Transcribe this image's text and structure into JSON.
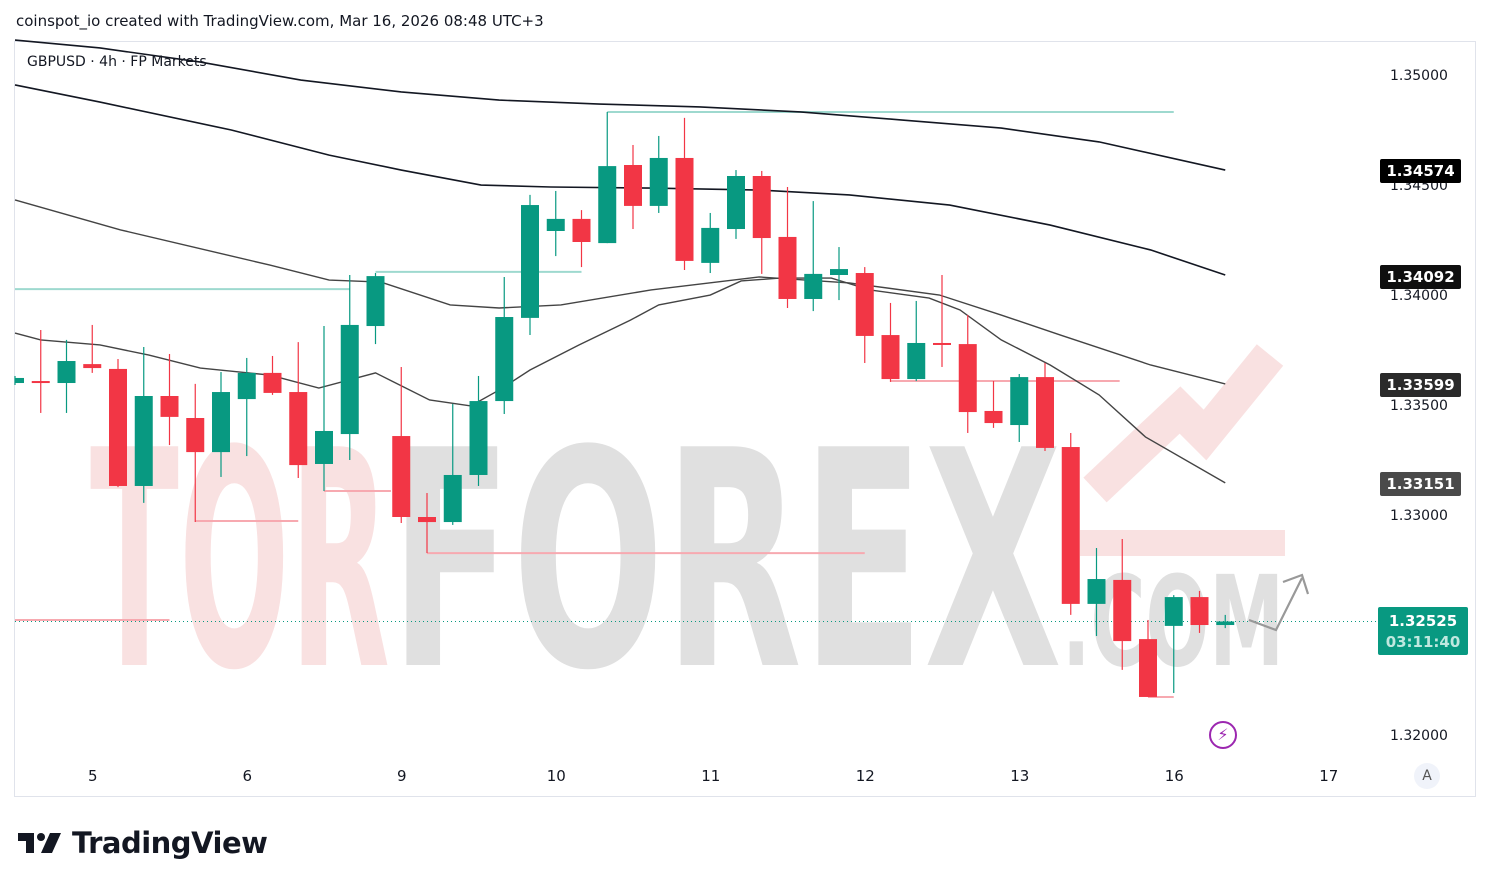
{
  "caption": "coinspot_io created with TradingView.com, Mar 16, 2026 08:48 UTC+3",
  "legend": "GBPUSD · 4h · FP Markets",
  "watermark": {
    "left": "TOR",
    "middle": "FOREX",
    "suffix": ".COM"
  },
  "footer_logo": "TradingView",
  "auto_button": "A",
  "colors": {
    "up": "#089981",
    "down": "#F23645",
    "level_up": "#9ed9cf",
    "level_down": "#f7a9b0",
    "ma_dark": "#131722",
    "ma_gray": "#444444",
    "alert": "#9c27b0"
  },
  "icons": {
    "alert": "lightning-icon",
    "projection": "arrow-up-right-icon"
  },
  "chart_data": {
    "type": "candlestick",
    "symbol": "GBPUSD",
    "interval": "4h",
    "ylim": [
      1.3185,
      1.3515
    ],
    "price_ticks": [
      "1.35000",
      "1.34500",
      "1.34000",
      "1.33500",
      "1.33000",
      "1.32000"
    ],
    "time_ticks": [
      {
        "label": "5",
        "bar": 3
      },
      {
        "label": "6",
        "bar": 9
      },
      {
        "label": "9",
        "bar": 15
      },
      {
        "label": "10",
        "bar": 21
      },
      {
        "label": "11",
        "bar": 27
      },
      {
        "label": "12",
        "bar": 33
      },
      {
        "label": "13",
        "bar": 39
      },
      {
        "label": "16",
        "bar": 45
      },
      {
        "label": "17",
        "bar": 51
      }
    ],
    "candles": [
      [
        1.33609,
        1.33641,
        1.336,
        1.33632
      ],
      [
        1.33618,
        1.3385,
        1.33473,
        1.33609
      ],
      [
        1.33609,
        1.33805,
        1.33473,
        1.33709
      ],
      [
        1.33695,
        1.33873,
        1.33655,
        1.33677
      ],
      [
        1.33673,
        1.33718,
        1.33136,
        1.33141
      ],
      [
        1.33141,
        1.33773,
        1.33064,
        1.3355
      ],
      [
        1.3355,
        1.33741,
        1.33327,
        1.33455
      ],
      [
        1.3345,
        1.33605,
        1.32977,
        1.33295
      ],
      [
        1.33295,
        1.33659,
        1.33182,
        1.33568
      ],
      [
        1.33536,
        1.33723,
        1.33277,
        1.33655
      ],
      [
        1.33655,
        1.33732,
        1.33555,
        1.33564
      ],
      [
        1.33568,
        1.33795,
        1.33177,
        1.33236
      ],
      [
        1.33241,
        1.33868,
        1.33118,
        1.33391
      ],
      [
        1.33377,
        1.341,
        1.33259,
        1.33873
      ],
      [
        1.33868,
        1.34109,
        1.33786,
        1.34095
      ],
      [
        1.33368,
        1.33682,
        1.32973,
        1.33
      ],
      [
        1.33,
        1.33109,
        1.32836,
        1.32977
      ],
      [
        1.32977,
        1.33514,
        1.32964,
        1.33191
      ],
      [
        1.33191,
        1.33641,
        1.33141,
        1.33527
      ],
      [
        1.33527,
        1.34091,
        1.33468,
        1.33909
      ],
      [
        1.33905,
        1.34464,
        1.33827,
        1.34418
      ],
      [
        1.343,
        1.34482,
        1.34186,
        1.34355
      ],
      [
        1.34355,
        1.34395,
        1.34136,
        1.3425
      ],
      [
        1.34245,
        1.34841,
        1.34245,
        1.34595
      ],
      [
        1.346,
        1.34691,
        1.34309,
        1.34414
      ],
      [
        1.34414,
        1.34732,
        1.34382,
        1.34632
      ],
      [
        1.34632,
        1.34814,
        1.34123,
        1.34164
      ],
      [
        1.34155,
        1.34382,
        1.34109,
        1.34314
      ],
      [
        1.34309,
        1.34577,
        1.34264,
        1.3455
      ],
      [
        1.3455,
        1.34573,
        1.34105,
        1.34268
      ],
      [
        1.34273,
        1.345,
        1.3395,
        1.33991
      ],
      [
        1.33991,
        1.34436,
        1.33936,
        1.34105
      ],
      [
        1.341,
        1.34227,
        1.33986,
        1.34127
      ],
      [
        1.34109,
        1.34136,
        1.337,
        1.33823
      ],
      [
        1.33827,
        1.33973,
        1.33614,
        1.33627
      ],
      [
        1.33627,
        1.33982,
        1.33618,
        1.33791
      ],
      [
        1.33791,
        1.341,
        1.33682,
        1.33782
      ],
      [
        1.33786,
        1.33918,
        1.33382,
        1.33477
      ],
      [
        1.33482,
        1.33618,
        1.33405,
        1.33427
      ],
      [
        1.33418,
        1.3365,
        1.33341,
        1.33636
      ],
      [
        1.33636,
        1.337,
        1.333,
        1.33314
      ],
      [
        1.33318,
        1.33382,
        1.32555,
        1.32605
      ],
      [
        1.32605,
        1.32859,
        1.32459,
        1.32718
      ],
      [
        1.32714,
        1.329,
        1.32305,
        1.32436
      ],
      [
        1.32445,
        1.32532,
        1.32182,
        1.32182
      ],
      [
        1.32505,
        1.32645,
        1.322,
        1.32636
      ],
      [
        1.32636,
        1.32664,
        1.32473,
        1.32509
      ],
      [
        1.32509,
        1.32555,
        1.32495,
        1.32525
      ]
    ],
    "candle_fields": [
      "open",
      "high",
      "low",
      "close"
    ],
    "moving_averages": [
      {
        "value_label": "1.34574",
        "style": "dark",
        "points": [
          [
            0,
            1.35168
          ],
          [
            3.3,
            1.35132
          ],
          [
            7.2,
            1.35068
          ],
          [
            11.1,
            1.34986
          ],
          [
            15,
            1.34932
          ],
          [
            18.8,
            1.34895
          ],
          [
            22.7,
            1.34877
          ],
          [
            26.6,
            1.34864
          ],
          [
            30.5,
            1.34841
          ],
          [
            34.4,
            1.34805
          ],
          [
            38.3,
            1.34768
          ],
          [
            42.1,
            1.34705
          ],
          [
            47,
            1.34577
          ]
        ]
      },
      {
        "value_label": "1.34092",
        "style": "dark",
        "points": [
          [
            0,
            1.34964
          ],
          [
            3.3,
            1.34886
          ],
          [
            8.4,
            1.34759
          ],
          [
            12.2,
            1.34645
          ],
          [
            15,
            1.34577
          ],
          [
            18.1,
            1.34509
          ],
          [
            20.8,
            1.345
          ],
          [
            24.7,
            1.34495
          ],
          [
            28.9,
            1.34486
          ],
          [
            32.4,
            1.34464
          ],
          [
            36.3,
            1.34418
          ],
          [
            40.2,
            1.34327
          ],
          [
            44.1,
            1.34214
          ],
          [
            47,
            1.341
          ]
        ]
      },
      {
        "value_label": "1.33599",
        "style": "gray",
        "points": [
          [
            0,
            1.34441
          ],
          [
            4.1,
            1.34305
          ],
          [
            9.9,
            1.34145
          ],
          [
            12.2,
            1.34077
          ],
          [
            14.2,
            1.34068
          ],
          [
            16.9,
            1.33964
          ],
          [
            18.8,
            1.3395
          ],
          [
            21.2,
            1.33964
          ],
          [
            24.7,
            1.34032
          ],
          [
            28.9,
            1.34091
          ],
          [
            32.4,
            1.34064
          ],
          [
            35.9,
            1.34009
          ],
          [
            38.3,
            1.33918
          ],
          [
            40.6,
            1.33827
          ],
          [
            44.1,
            1.33691
          ],
          [
            47,
            1.33605
          ]
        ]
      },
      {
        "value_label": "1.33151",
        "style": "gray",
        "points": [
          [
            0,
            1.33836
          ],
          [
            1,
            1.33805
          ],
          [
            3.3,
            1.33782
          ],
          [
            5.2,
            1.33736
          ],
          [
            7.2,
            1.33677
          ],
          [
            9.9,
            1.33645
          ],
          [
            11.8,
            1.33586
          ],
          [
            14,
            1.33655
          ],
          [
            16.1,
            1.33532
          ],
          [
            17.7,
            1.33505
          ],
          [
            18.8,
            1.33577
          ],
          [
            20,
            1.33668
          ],
          [
            21.9,
            1.33782
          ],
          [
            23.9,
            1.33895
          ],
          [
            25,
            1.33964
          ],
          [
            27,
            1.34009
          ],
          [
            28.2,
            1.34073
          ],
          [
            29.7,
            1.34086
          ],
          [
            31.7,
            1.34086
          ],
          [
            33.2,
            1.34032
          ],
          [
            35.5,
            1.33995
          ],
          [
            36.7,
            1.33941
          ],
          [
            38.3,
            1.33805
          ],
          [
            40.2,
            1.33691
          ],
          [
            42.1,
            1.33555
          ],
          [
            43.9,
            1.33364
          ],
          [
            47,
            1.33155
          ]
        ]
      }
    ],
    "levels": [
      {
        "price": 1.34036,
        "from": 0,
        "to": 13,
        "kind": "up"
      },
      {
        "price": 1.34114,
        "from": 14,
        "to": 22,
        "kind": "up"
      },
      {
        "price": 1.34841,
        "from": 23,
        "to": 45,
        "kind": "up"
      },
      {
        "price": 1.32532,
        "from": 0,
        "to": 6,
        "kind": "down"
      },
      {
        "price": 1.32982,
        "from": 7,
        "to": 11,
        "kind": "down"
      },
      {
        "price": 1.33118,
        "from": 12,
        "to": 14.6,
        "kind": "down"
      },
      {
        "price": 1.32836,
        "from": 16,
        "to": 33,
        "kind": "down"
      },
      {
        "price": 1.33618,
        "from": 34,
        "to": 42.9,
        "kind": "down"
      },
      {
        "price": 1.32182,
        "from": 44,
        "to": 45,
        "kind": "down"
      }
    ],
    "last_price": "1.32525",
    "last_price_value": 1.32525,
    "countdown": "03:11:40"
  }
}
